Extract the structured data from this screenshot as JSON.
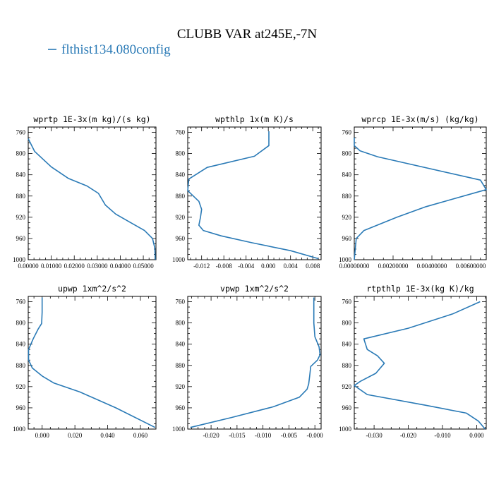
{
  "title": "CLUBB VAR at245E,-7N",
  "legend": {
    "label": "flthist134.080config",
    "color": "#2a7ab6"
  },
  "chart_data": [
    {
      "type": "line",
      "title": "wprtp  1E-3x(m kg)/(s kg)",
      "xlim": [
        0.0,
        0.0555
      ],
      "ylim": [
        1000,
        750
      ],
      "xticks": [
        0.0,
        0.01,
        0.02,
        0.03,
        0.04,
        0.05
      ],
      "xticklabels": [
        "0.00000",
        "0.01000",
        "0.02000",
        "0.03000",
        "0.04000",
        "0.05000"
      ],
      "yticks": [
        760,
        800,
        840,
        880,
        920,
        960,
        1000
      ],
      "series": [
        {
          "x": [
            0.0,
            0.0028,
            0.01,
            0.0175,
            0.0255,
            0.0305,
            0.0335,
            0.038,
            0.0445,
            0.0505,
            0.054,
            0.055,
            0.0552
          ],
          "y": [
            772,
            796,
            825,
            847,
            861,
            875,
            897,
            914,
            930,
            945,
            960,
            978,
            1000
          ]
        }
      ]
    },
    {
      "type": "line",
      "title": "wpthlp  1x(m K)/s",
      "xlim": [
        -0.0145,
        0.0095
      ],
      "ylim": [
        1000,
        750
      ],
      "xticks": [
        -0.012,
        -0.008,
        -0.004,
        0.0,
        0.004,
        0.008
      ],
      "xticklabels": [
        "-0.012",
        "-0.008",
        "-0.004",
        "0.000",
        "0.004",
        "0.008"
      ],
      "yticks": [
        760,
        800,
        840,
        880,
        920,
        960,
        1000
      ],
      "series": [
        {
          "x": [
            0.0001,
            0.0001,
            -0.0025,
            -0.011,
            -0.0143,
            -0.0145,
            -0.0125,
            -0.012,
            -0.0122,
            -0.0125,
            -0.0117,
            -0.0085,
            -0.003,
            0.004,
            0.009
          ],
          "y": [
            758,
            785,
            805,
            826,
            848,
            870,
            890,
            905,
            920,
            935,
            945,
            955,
            968,
            983,
            998
          ]
        }
      ]
    },
    {
      "type": "line",
      "title": "wprcp  1E-3x(m/s) (kg/kg)",
      "xlim": [
        0.0,
        0.0068
      ],
      "ylim": [
        1000,
        750
      ],
      "xticks": [
        0.0,
        0.002,
        0.004,
        0.006
      ],
      "xticklabels": [
        "0.00000000",
        "0.00200000",
        "0.00400000",
        "0.00600000"
      ],
      "yticks": [
        760,
        800,
        840,
        880,
        920,
        960,
        1000
      ],
      "series": [
        {
          "x": [
            0.0,
            0.0,
            0.0003,
            0.0012,
            0.0065,
            0.0068,
            0.0037,
            0.0022,
            0.0005,
            0.0001,
            0.0
          ],
          "y": [
            770,
            785,
            795,
            806,
            850,
            868,
            900,
            920,
            945,
            960,
            1000
          ]
        }
      ]
    },
    {
      "type": "line",
      "title": "upwp  1xm^2/s^2",
      "xlim": [
        -0.0085,
        0.0695
      ],
      "ylim": [
        1000,
        750
      ],
      "xticks": [
        0.0,
        0.02,
        0.04,
        0.06
      ],
      "xticklabels": [
        "0.000",
        "0.020",
        "0.040",
        "0.060"
      ],
      "yticks": [
        760,
        800,
        840,
        880,
        920,
        960,
        1000
      ],
      "series": [
        {
          "x": [
            0.0,
            0.0,
            -0.0003,
            -0.0025,
            -0.0055,
            -0.0083,
            -0.0083,
            -0.006,
            0.0,
            0.007,
            0.023,
            0.045,
            0.069
          ],
          "y": [
            752,
            780,
            801,
            812,
            830,
            850,
            870,
            885,
            900,
            913,
            930,
            960,
            997
          ]
        }
      ]
    },
    {
      "type": "line",
      "title": "vpwp  1xm^2/s^2",
      "xlim": [
        -0.0245,
        0.0012
      ],
      "ylim": [
        1000,
        750
      ],
      "xticks": [
        -0.02,
        -0.015,
        -0.01,
        -0.005,
        0.0
      ],
      "xticklabels": [
        "-0.020",
        "-0.015",
        "-0.010",
        "-0.005",
        "-0.000"
      ],
      "yticks": [
        760,
        800,
        840,
        880,
        920,
        960,
        1000
      ],
      "series": [
        {
          "x": [
            -0.0002,
            -0.0002,
            -0.0002,
            0.0,
            0.0008,
            0.001,
            0.0005,
            -0.0008,
            -0.001,
            -0.0012,
            -0.0015,
            -0.003,
            -0.008,
            -0.016,
            -0.024
          ],
          "y": [
            752,
            775,
            800,
            826,
            845,
            860,
            870,
            882,
            900,
            915,
            925,
            940,
            958,
            978,
            997
          ]
        }
      ]
    },
    {
      "type": "line",
      "title": "rtpthlp  1E-3x(kg K)/kg",
      "xlim": [
        -0.0358,
        0.0028
      ],
      "ylim": [
        1000,
        750
      ],
      "xticks": [
        -0.03,
        -0.02,
        -0.01,
        0.0
      ],
      "xticklabels": [
        "-0.030",
        "-0.020",
        "-0.010",
        "0.000"
      ],
      "yticks": [
        760,
        800,
        840,
        880,
        920,
        960,
        1000
      ],
      "series": [
        {
          "x": [
            0.001,
            -0.007,
            -0.02,
            -0.033,
            -0.032,
            -0.029,
            -0.027,
            -0.0295,
            -0.034,
            -0.0358,
            -0.032,
            -0.015,
            -0.003,
            0.0005,
            0.0025
          ],
          "y": [
            760,
            783,
            810,
            830,
            850,
            862,
            876,
            895,
            910,
            918,
            935,
            955,
            970,
            985,
            1000
          ]
        }
      ]
    }
  ]
}
